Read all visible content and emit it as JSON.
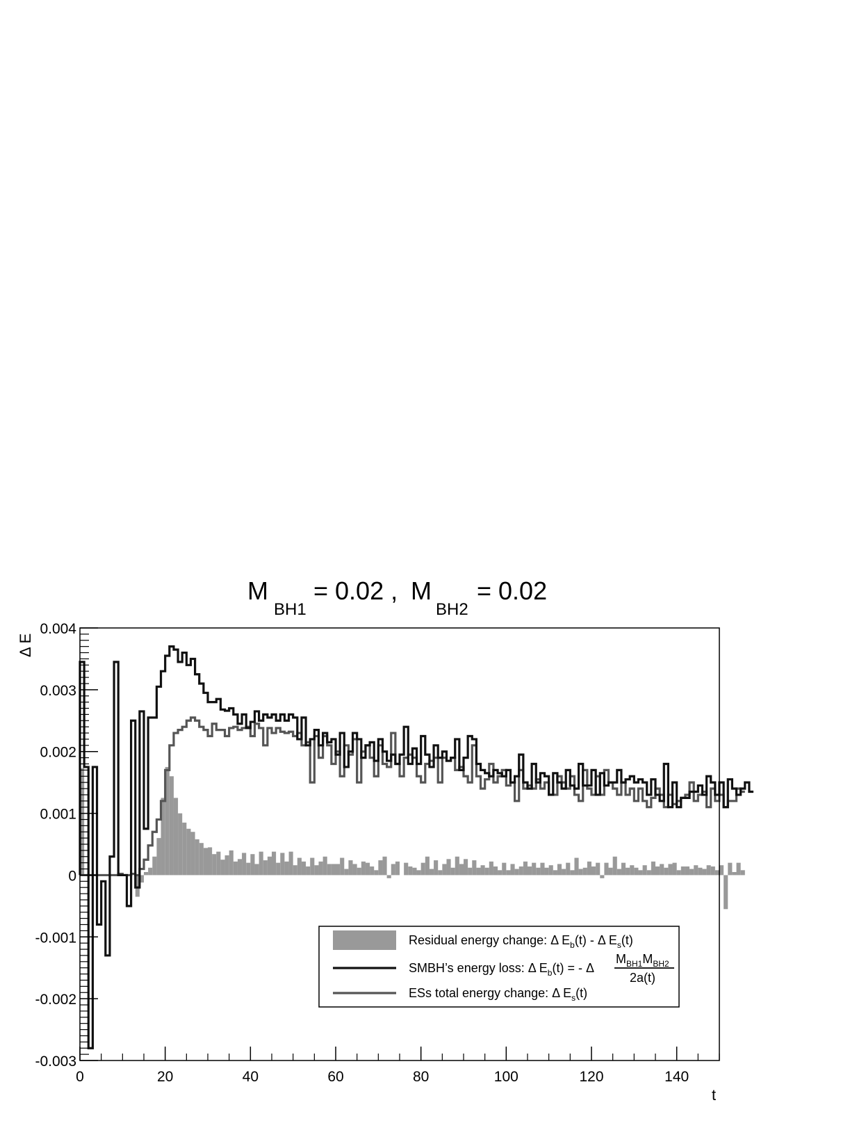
{
  "chart_data": {
    "type": "bar",
    "title": {
      "m1_symbol": "M",
      "m1_sub": "BH1",
      "m1_value": "= 0.02 ,",
      "m2_symbol": "M",
      "m2_sub": "BH2",
      "m2_value": "= 0.02"
    },
    "xlabel": "t",
    "ylabel": "Δ E",
    "xlim": [
      0,
      150
    ],
    "ylim": [
      -0.003,
      0.004
    ],
    "bin_width": 1,
    "x_ticks": [
      0,
      20,
      40,
      60,
      80,
      100,
      120,
      140
    ],
    "y_ticks": [
      {
        "value": -0.003,
        "label": "-0.003"
      },
      {
        "value": -0.002,
        "label": "-0.002"
      },
      {
        "value": -0.001,
        "label": "-0.001"
      },
      {
        "value": 0,
        "label": "0"
      },
      {
        "value": 0.001,
        "label": "0.001"
      },
      {
        "value": 0.002,
        "label": "0.002"
      },
      {
        "value": 0.003,
        "label": "0.003"
      },
      {
        "value": 0.004,
        "label": "0.004"
      }
    ],
    "grid": false,
    "legend_position": "bottom-right",
    "colors": {
      "residual": "#999999",
      "smbh": "#111111",
      "ess": "#555555"
    },
    "series": [
      {
        "key": "residual",
        "style": "filled",
        "legend_text": "Residual energy change: Δ E_b(t) - Δ E_s(t)",
        "values": [
          0.00173,
          0.0,
          0.0,
          0.0,
          0.0,
          0.0,
          0.0,
          0.0,
          0.0,
          0.0,
          0.0,
          0.0,
          0.0,
          -0.00035,
          -0.00012,
          5e-05,
          0.00012,
          0.0003,
          0.0006,
          0.00125,
          0.00175,
          0.0016,
          0.00125,
          0.001,
          0.00085,
          0.00075,
          0.0007,
          0.00058,
          0.00052,
          0.00044,
          0.00045,
          0.00034,
          0.00038,
          0.00025,
          0.00032,
          0.0004,
          0.00022,
          0.00026,
          0.00036,
          0.0002,
          0.00034,
          0.00018,
          0.00038,
          0.00024,
          0.0003,
          0.00038,
          0.0002,
          0.00036,
          0.00022,
          0.00038,
          0.00016,
          0.00028,
          0.00022,
          0.00014,
          0.00028,
          0.00016,
          0.00022,
          0.0003,
          0.00018,
          0.00018,
          0.00018,
          0.00028,
          0.0001,
          0.00024,
          0.00018,
          0.00012,
          0.00022,
          0.0002,
          0.00014,
          8e-05,
          0.00024,
          0.0003,
          -5e-05,
          0.00018,
          0.00022,
          0.0,
          0.0002,
          0.00014,
          0.00012,
          8e-05,
          0.0002,
          0.0003,
          0.0001,
          0.00024,
          8e-05,
          0.00018,
          0.00026,
          0.00012,
          0.0003,
          0.00018,
          0.00026,
          0.00012,
          0.00024,
          0.00012,
          0.00016,
          0.00012,
          0.00022,
          0.00014,
          8e-05,
          0.0002,
          8e-05,
          0.00018,
          0.0001,
          0.00014,
          0.00022,
          0.00014,
          0.0002,
          0.00012,
          0.0002,
          0.00012,
          0.00016,
          8e-05,
          0.00018,
          0.0001,
          0.0002,
          8e-05,
          0.00028,
          0.0001,
          0.00012,
          0.00022,
          0.00014,
          0.0002,
          -5e-05,
          0.0002,
          0.00012,
          0.0003,
          0.0001,
          0.0002,
          0.00012,
          0.00016,
          0.00012,
          8e-05,
          0.00016,
          8e-05,
          0.00022,
          0.00014,
          0.00018,
          0.00012,
          0.00018,
          0.0002,
          8e-05,
          0.00014,
          0.00014,
          0.0001,
          0.00016,
          0.00012,
          0.0001,
          0.00016,
          0.00014,
          8e-05,
          0.00016,
          -0.00055,
          0.0002,
          5e-05,
          0.0002,
          8e-05
        ]
      },
      {
        "key": "smbh",
        "style": "step",
        "legend_text": "SMBH’s energy loss: Δ E_b(t) = - Δ M_BH1 M_BH2 / 2a(t)",
        "values": [
          0.00345,
          0.00175,
          -0.0028,
          0.00175,
          -0.0008,
          -0.0001,
          -0.0013,
          0.0003,
          0.00345,
          0.0,
          0.0,
          -0.0005,
          0.0025,
          -0.0002,
          0.00265,
          0.00075,
          0.00255,
          0.00255,
          0.00305,
          0.0033,
          0.00355,
          0.0037,
          0.00365,
          0.00345,
          0.0036,
          0.0034,
          0.0035,
          0.00325,
          0.0031,
          0.00295,
          0.0028,
          0.0028,
          0.00285,
          0.00268,
          0.00266,
          0.0027,
          0.0026,
          0.00245,
          0.0026,
          0.00238,
          0.00248,
          0.00265,
          0.0025,
          0.0026,
          0.00255,
          0.0026,
          0.0025,
          0.0026,
          0.0025,
          0.0026,
          0.00255,
          0.0022,
          0.00255,
          0.0021,
          0.0022,
          0.00235,
          0.0021,
          0.0023,
          0.00215,
          0.0022,
          0.00195,
          0.0023,
          0.00175,
          0.002,
          0.0023,
          0.0022,
          0.0019,
          0.0021,
          0.00215,
          0.00185,
          0.0022,
          0.002,
          0.00185,
          0.00195,
          0.0018,
          0.00195,
          0.0024,
          0.0018,
          0.00205,
          0.0018,
          0.00225,
          0.00195,
          0.00175,
          0.0021,
          0.0019,
          0.002,
          0.00185,
          0.0019,
          0.0022,
          0.0017,
          0.0019,
          0.00225,
          0.0022,
          0.0018,
          0.0017,
          0.00165,
          0.0016,
          0.0017,
          0.00165,
          0.0016,
          0.0017,
          0.0015,
          0.0016,
          0.00195,
          0.0015,
          0.0014,
          0.0018,
          0.0015,
          0.00165,
          0.0016,
          0.0013,
          0.00165,
          0.0015,
          0.0014,
          0.0017,
          0.00145,
          0.0014,
          0.0018,
          0.00145,
          0.00145,
          0.0017,
          0.0013,
          0.00165,
          0.00145,
          0.0015,
          0.0015,
          0.0017,
          0.0015,
          0.00155,
          0.0016,
          0.0015,
          0.00155,
          0.0015,
          0.0013,
          0.00155,
          0.0013,
          0.0012,
          0.0018,
          0.0011,
          0.0015,
          0.0011,
          0.00125,
          0.00125,
          0.00135,
          0.00135,
          0.00145,
          0.0013,
          0.0016,
          0.0015,
          0.0013,
          0.0015,
          0.0011,
          0.00155,
          0.0014,
          0.0013,
          0.0014,
          0.0015,
          0.00135
        ]
      },
      {
        "key": "ess",
        "style": "step",
        "legend_text": "ESs total energy change: Δ E_s(t)",
        "values": [
          0.0,
          0.0,
          0.0,
          0.0,
          0.0,
          0.0,
          0.0,
          0.0,
          0.0,
          2e-05,
          0.0,
          0.0,
          2e-05,
          0.0,
          0.0001,
          0.00025,
          0.00048,
          0.0007,
          0.0009,
          0.0012,
          0.0017,
          0.0021,
          0.0023,
          0.00235,
          0.0024,
          0.0025,
          0.00255,
          0.0025,
          0.0024,
          0.00235,
          0.00225,
          0.00245,
          0.00235,
          0.00235,
          0.00225,
          0.00238,
          0.0024,
          0.00235,
          0.00238,
          0.0024,
          0.00225,
          0.00245,
          0.00238,
          0.0021,
          0.00238,
          0.0023,
          0.00238,
          0.00232,
          0.0023,
          0.00232,
          0.00225,
          0.0023,
          0.0021,
          0.00215,
          0.0015,
          0.00225,
          0.0019,
          0.00225,
          0.0021,
          0.0018,
          0.002,
          0.0016,
          0.0021,
          0.00195,
          0.0022,
          0.0015,
          0.002,
          0.0021,
          0.0019,
          0.0016,
          0.0021,
          0.0018,
          0.00175,
          0.0023,
          0.0018,
          0.0016,
          0.0019,
          0.00195,
          0.0019,
          0.0016,
          0.0015,
          0.0018,
          0.00185,
          0.0019,
          0.0015,
          0.0019,
          0.00185,
          0.0019,
          0.0017,
          0.00175,
          0.0016,
          0.0015,
          0.0021,
          0.0016,
          0.0014,
          0.00155,
          0.0018,
          0.0015,
          0.0016,
          0.0017,
          0.00145,
          0.0015,
          0.0012,
          0.0017,
          0.0014,
          0.00145,
          0.0014,
          0.00155,
          0.0014,
          0.0015,
          0.0013,
          0.0013,
          0.0016,
          0.0015,
          0.0014,
          0.0016,
          0.0013,
          0.0012,
          0.0017,
          0.0014,
          0.0013,
          0.0016,
          0.0013,
          0.0017,
          0.0015,
          0.0014,
          0.0013,
          0.0015,
          0.0013,
          0.0014,
          0.0012,
          0.0014,
          0.0012,
          0.0011,
          0.00125,
          0.0014,
          0.0013,
          0.0011,
          0.0013,
          0.00115,
          0.0012,
          0.00125,
          0.0013,
          0.0015,
          0.0012,
          0.0013,
          0.00135,
          0.0011,
          0.0014,
          0.0012,
          0.0013,
          0.0011,
          0.0012,
          0.0012,
          0.0014,
          0.00135
        ]
      }
    ]
  }
}
